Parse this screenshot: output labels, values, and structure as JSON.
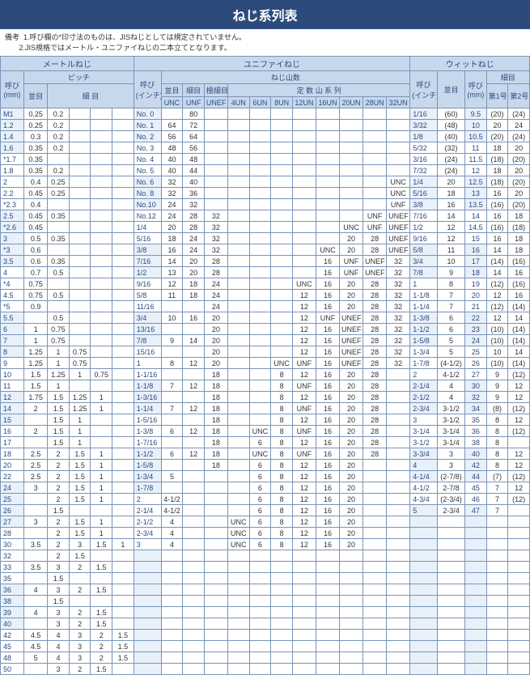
{
  "title": "ねじ系列表",
  "notes": {
    "label": "備考",
    "n1": "1.呼び欄の*印寸法のものは、JISねじとしては規定されていません。",
    "n2": "2.JIS規格ではメートル・ユニファイねじの二本立てとなります。"
  },
  "headers": {
    "metric": "メートルねじ",
    "unified": "ユニファイねじ",
    "whit": "ウィットねじ",
    "yobi_mm": "呼び\n(mm)",
    "yobi_in": "呼び\n(インチ)",
    "pitch": "ピッチ",
    "threads": "ねじ山数",
    "fixed": "定数山系列",
    "coarse": "並目",
    "fine": "細目",
    "vfine": "極細目",
    "unc": "UNC",
    "unf": "UNF",
    "unef": "UNEF",
    "u4": "4UN",
    "u6": "6UN",
    "u8": "8UN",
    "u12": "12UN",
    "u16": "16UN",
    "u20": "20UN",
    "u28": "28UN",
    "u32": "32UN",
    "no1": "第1号",
    "no2": "第2号"
  },
  "metric_rows": [
    {
      "y": "M1",
      "c": "0.25",
      "f": [
        "0.2"
      ]
    },
    {
      "y": "1.2",
      "c": "0.25",
      "f": [
        "0.2"
      ]
    },
    {
      "y": "1.4",
      "c": "0.3",
      "f": [
        "0.2"
      ]
    },
    {
      "y": "1.6",
      "c": "0.35",
      "f": [
        "0.2"
      ]
    },
    {
      "y": "*1.7",
      "c": "0.35",
      "f": [],
      "star": 1
    },
    {
      "y": "1.8",
      "c": "0.35",
      "f": [
        "0.2"
      ]
    },
    {
      "y": "2",
      "c": "0.4",
      "f": [
        "0.25"
      ]
    },
    {
      "y": "2.2",
      "c": "0.45",
      "f": [
        "0.25"
      ]
    },
    {
      "y": "*2.3",
      "c": "0.4",
      "f": [],
      "star": 1
    },
    {
      "y": "2.5",
      "c": "0.45",
      "f": [
        "0.35"
      ]
    },
    {
      "y": "*2.6",
      "c": "0.45",
      "f": [],
      "star": 1
    },
    {
      "y": "3",
      "c": "0.5",
      "f": [
        "0.35"
      ]
    },
    {
      "y": "*3",
      "c": "0.6",
      "f": [],
      "star": 1
    },
    {
      "y": "3.5",
      "c": "0.6",
      "f": [
        "0.35"
      ]
    },
    {
      "y": "4",
      "c": "0.7",
      "f": [
        "0.5"
      ]
    },
    {
      "y": "*4",
      "c": "0.75",
      "f": [],
      "star": 1
    },
    {
      "y": "4.5",
      "c": "0.75",
      "f": [
        "0.5"
      ]
    },
    {
      "y": "*5",
      "c": "0.9",
      "f": [],
      "star": 1
    },
    {
      "y": "5.5",
      "c": "",
      "f": [
        "0.5"
      ]
    },
    {
      "y": "6",
      "c": "1",
      "f": [
        "0.75"
      ]
    },
    {
      "y": "7",
      "c": "1",
      "f": [
        "0.75"
      ]
    },
    {
      "y": "8",
      "c": "1.25",
      "f": [
        "1",
        "0.75"
      ]
    },
    {
      "y": "9",
      "c": "1.25",
      "f": [
        "1",
        "0.75"
      ]
    },
    {
      "y": "10",
      "c": "1.5",
      "f": [
        "1.25",
        "1",
        "0.75"
      ]
    },
    {
      "y": "11",
      "c": "1.5",
      "f": [
        "1"
      ]
    },
    {
      "y": "12",
      "c": "1.75",
      "f": [
        "1.5",
        "1.25",
        "1"
      ]
    },
    {
      "y": "14",
      "c": "2",
      "f": [
        "1.5",
        "1.25",
        "1"
      ]
    },
    {
      "y": "15",
      "c": "",
      "f": [
        "1.5",
        "1"
      ]
    },
    {
      "y": "16",
      "c": "2",
      "f": [
        "1.5",
        "1"
      ]
    },
    {
      "y": "17",
      "c": "",
      "f": [
        "1.5",
        "1"
      ]
    },
    {
      "y": "18",
      "c": "2.5",
      "f": [
        "2",
        "1.5",
        "1"
      ]
    },
    {
      "y": "20",
      "c": "2.5",
      "f": [
        "2",
        "1.5",
        "1"
      ]
    },
    {
      "y": "22",
      "c": "2.5",
      "f": [
        "2",
        "1.5",
        "1"
      ]
    },
    {
      "y": "24",
      "c": "3",
      "f": [
        "2",
        "1.5",
        "1"
      ]
    },
    {
      "y": "25",
      "c": "",
      "f": [
        "2",
        "1.5",
        "1"
      ]
    },
    {
      "y": "26",
      "c": "",
      "f": [
        "1.5"
      ]
    },
    {
      "y": "27",
      "c": "3",
      "f": [
        "2",
        "1.5",
        "1"
      ]
    },
    {
      "y": "28",
      "c": "",
      "f": [
        "2",
        "1.5",
        "1"
      ]
    },
    {
      "y": "30",
      "c": "3.5",
      "f": [
        "2",
        "3",
        "1.5",
        "1"
      ]
    },
    {
      "y": "32",
      "c": "",
      "f": [
        "2",
        "1.5"
      ]
    },
    {
      "y": "33",
      "c": "3.5",
      "f": [
        "3",
        "2",
        "1.5"
      ]
    },
    {
      "y": "35",
      "c": "",
      "f": [
        "1.5"
      ]
    },
    {
      "y": "36",
      "c": "4",
      "f": [
        "3",
        "2",
        "1.5"
      ]
    },
    {
      "y": "38",
      "c": "",
      "f": [
        "1.5"
      ]
    },
    {
      "y": "39",
      "c": "4",
      "f": [
        "3",
        "2",
        "1.5"
      ]
    },
    {
      "y": "40",
      "c": "",
      "f": [
        "3",
        "2",
        "1.5"
      ]
    },
    {
      "y": "42",
      "c": "4.5",
      "f": [
        "4",
        "3",
        "2",
        "1.5"
      ]
    },
    {
      "y": "45",
      "c": "4.5",
      "f": [
        "4",
        "3",
        "2",
        "1.5"
      ]
    },
    {
      "y": "48",
      "c": "5",
      "f": [
        "4",
        "3",
        "2",
        "1.5"
      ]
    },
    {
      "y": "50",
      "c": "",
      "f": [
        "3",
        "2",
        "1.5"
      ]
    }
  ],
  "unified_rows": [
    {
      "y": "No. 0",
      "c": "",
      "f": "80"
    },
    {
      "y": "No. 1",
      "c": "64",
      "f": "72"
    },
    {
      "y": "No. 2",
      "c": "56",
      "f": "64"
    },
    {
      "y": "No. 3",
      "c": "48",
      "f": "56"
    },
    {
      "y": "No. 4",
      "c": "40",
      "f": "48"
    },
    {
      "y": "No. 5",
      "c": "40",
      "f": "44"
    },
    {
      "y": "No. 6",
      "c": "32",
      "f": "40",
      "u32": "UNC"
    },
    {
      "y": "No. 8",
      "c": "32",
      "f": "36",
      "u32": "UNC"
    },
    {
      "y": "No.10",
      "c": "24",
      "f": "32",
      "u32": "UNF"
    },
    {
      "y": "No.12",
      "c": "24",
      "f": "28",
      "e": "32",
      "u28": "UNF",
      "u32": "UNEF"
    },
    {
      "y": "1/4",
      "c": "20",
      "f": "28",
      "e": "32",
      "u20": "UNC",
      "u28": "UNF",
      "u32": "UNEF"
    },
    {
      "y": "5/16",
      "c": "18",
      "f": "24",
      "e": "32",
      "u20": "20",
      "u28": "28",
      "u32": "UNEF"
    },
    {
      "y": "3/8",
      "c": "16",
      "f": "24",
      "e": "32",
      "u16": "UNC",
      "u20": "20",
      "u28": "28",
      "u32": "UNEF"
    },
    {
      "y": "7/16",
      "c": "14",
      "f": "20",
      "e": "28",
      "u16": "16",
      "u20": "UNF",
      "u28": "UNEF",
      "u32": "32"
    },
    {
      "y": "1/2",
      "c": "13",
      "f": "20",
      "e": "28",
      "u16": "16",
      "u20": "UNF",
      "u28": "UNEF",
      "u32": "32"
    },
    {
      "y": "9/16",
      "c": "12",
      "f": "18",
      "e": "24",
      "u12": "UNC",
      "u16": "16",
      "u20": "20",
      "u28": "28",
      "u32": "32"
    },
    {
      "y": "5/8",
      "c": "11",
      "f": "18",
      "e": "24",
      "u12": "12",
      "u16": "16",
      "u20": "20",
      "u28": "28",
      "u32": "32"
    },
    {
      "y": "11/16",
      "c": "",
      "f": "",
      "e": "24",
      "u12": "12",
      "u16": "16",
      "u20": "20",
      "u28": "28",
      "u32": "32"
    },
    {
      "y": "3/4",
      "c": "10",
      "f": "16",
      "e": "20",
      "u12": "12",
      "u16": "UNF",
      "u20": "UNEF",
      "u28": "28",
      "u32": "32"
    },
    {
      "y": "13/16",
      "c": "",
      "f": "",
      "e": "20",
      "u12": "12",
      "u16": "16",
      "u20": "UNEF",
      "u28": "28",
      "u32": "32"
    },
    {
      "y": "7/8",
      "c": "9",
      "f": "14",
      "e": "20",
      "u12": "12",
      "u16": "16",
      "u20": "UNEF",
      "u28": "28",
      "u32": "32"
    },
    {
      "y": "15/16",
      "c": "",
      "f": "",
      "e": "20",
      "u12": "12",
      "u16": "16",
      "u20": "UNEF",
      "u28": "28",
      "u32": "32"
    },
    {
      "y": "1",
      "c": "8",
      "f": "12",
      "e": "20",
      "u8": "UNC",
      "u12": "UNF",
      "u16": "16",
      "u20": "UNEF",
      "u28": "28",
      "u32": "32"
    },
    {
      "y": "1-1/16",
      "c": "",
      "f": "",
      "e": "18",
      "u8": "8",
      "u12": "12",
      "u16": "16",
      "u20": "20",
      "u28": "28"
    },
    {
      "y": "1-1/8",
      "c": "7",
      "f": "12",
      "e": "18",
      "u8": "8",
      "u12": "UNF",
      "u16": "16",
      "u20": "20",
      "u28": "28"
    },
    {
      "y": "1-3/16",
      "c": "",
      "f": "",
      "e": "18",
      "u8": "8",
      "u12": "12",
      "u16": "16",
      "u20": "20",
      "u28": "28"
    },
    {
      "y": "1-1/4",
      "c": "7",
      "f": "12",
      "e": "18",
      "u8": "8",
      "u12": "UNF",
      "u16": "16",
      "u20": "20",
      "u28": "28"
    },
    {
      "y": "1-5/16",
      "c": "",
      "f": "",
      "e": "18",
      "u8": "8",
      "u12": "12",
      "u16": "16",
      "u20": "20",
      "u28": "28"
    },
    {
      "y": "1-3/8",
      "c": "6",
      "f": "12",
      "e": "18",
      "u6": "UNC",
      "u8": "8",
      "u12": "UNF",
      "u16": "16",
      "u20": "20",
      "u28": "28"
    },
    {
      "y": "1-7/16",
      "c": "",
      "f": "",
      "e": "18",
      "u6": "6",
      "u8": "8",
      "u12": "12",
      "u16": "16",
      "u20": "20",
      "u28": "28"
    },
    {
      "y": "1-1/2",
      "c": "6",
      "f": "12",
      "e": "18",
      "u6": "UNC",
      "u8": "8",
      "u12": "UNF",
      "u16": "16",
      "u20": "20",
      "u28": "28"
    },
    {
      "y": "1-5/8",
      "c": "",
      "f": "",
      "e": "18",
      "u6": "6",
      "u8": "8",
      "u12": "12",
      "u16": "16",
      "u20": "20"
    },
    {
      "y": "1-3/4",
      "c": "5",
      "f": "",
      "u6": "6",
      "u8": "8",
      "u12": "12",
      "u16": "16",
      "u20": "20"
    },
    {
      "y": "1-7/8",
      "c": "",
      "f": "",
      "u6": "6",
      "u8": "8",
      "u12": "12",
      "u16": "16",
      "u20": "20"
    },
    {
      "y": "2",
      "c": "4-1/2",
      "f": "",
      "u6": "6",
      "u8": "8",
      "u12": "12",
      "u16": "16",
      "u20": "20"
    },
    {
      "y": "2-1/4",
      "c": "4-1/2",
      "f": "",
      "u6": "6",
      "u8": "8",
      "u12": "12",
      "u16": "16",
      "u20": "20"
    },
    {
      "y": "2-1/2",
      "c": "4",
      "f": "",
      "u4": "UNC",
      "u6": "6",
      "u8": "8",
      "u12": "12",
      "u16": "16",
      "u20": "20"
    },
    {
      "y": "2-3/4",
      "c": "4",
      "f": "",
      "u4": "UNC",
      "u6": "6",
      "u8": "8",
      "u12": "12",
      "u16": "16",
      "u20": "20"
    },
    {
      "y": "3",
      "c": "4",
      "f": "",
      "u4": "UNC",
      "u6": "6",
      "u8": "8",
      "u12": "12",
      "u16": "16",
      "u20": "20"
    }
  ],
  "whit_rows": [
    {
      "yi": "1/16",
      "c": "(60)",
      "ym": "9.5",
      "n1": "(20)",
      "n2": "(24)"
    },
    {
      "yi": "3/32",
      "c": "(48)",
      "ym": "10",
      "n1": "20",
      "n2": "24"
    },
    {
      "yi": "1/8",
      "c": "(40)",
      "ym": "10.5",
      "n1": "(20)",
      "n2": "(24)"
    },
    {
      "yi": "5/32",
      "c": "(32)",
      "ym": "11",
      "n1": "18",
      "n2": "20"
    },
    {
      "yi": "3/16",
      "c": "(24)",
      "ym": "11.5",
      "n1": "(18)",
      "n2": "(20)"
    },
    {
      "yi": "7/32",
      "c": "(24)",
      "ym": "12",
      "n1": "18",
      "n2": "20"
    },
    {
      "yi": "1/4",
      "c": "20",
      "ym": "12.5",
      "n1": "(18)",
      "n2": "(20)"
    },
    {
      "yi": "5/16",
      "c": "18",
      "ym": "13",
      "n1": "16",
      "n2": "20"
    },
    {
      "yi": "3/8",
      "c": "16",
      "ym": "13.5",
      "n1": "(16)",
      "n2": "(20)"
    },
    {
      "yi": "7/16",
      "c": "14",
      "ym": "14",
      "n1": "16",
      "n2": "18"
    },
    {
      "yi": "1/2",
      "c": "12",
      "ym": "14.5",
      "n1": "(16)",
      "n2": "(18)"
    },
    {
      "yi": "9/16",
      "c": "12",
      "ym": "15",
      "n1": "16",
      "n2": "18"
    },
    {
      "yi": "5/8",
      "c": "11",
      "ym": "16",
      "n1": "14",
      "n2": "18"
    },
    {
      "yi": "3/4",
      "c": "10",
      "ym": "17",
      "n1": "(14)",
      "n2": "(16)"
    },
    {
      "yi": "7/8",
      "c": "9",
      "ym": "18",
      "n1": "14",
      "n2": "16"
    },
    {
      "yi": "1",
      "c": "8",
      "ym": "19",
      "n1": "(12)",
      "n2": "(16)"
    },
    {
      "yi": "1-1/8",
      "c": "7",
      "ym": "20",
      "n1": "12",
      "n2": "16"
    },
    {
      "yi": "1-1/4",
      "c": "7",
      "ym": "21",
      "n1": "(12)",
      "n2": "(14)"
    },
    {
      "yi": "1-3/8",
      "c": "6",
      "ym": "22",
      "n1": "12",
      "n2": "14"
    },
    {
      "yi": "1-1/2",
      "c": "6",
      "ym": "23",
      "n1": "(10)",
      "n2": "(14)"
    },
    {
      "yi": "1-5/8",
      "c": "5",
      "ym": "24",
      "n1": "(10)",
      "n2": "(14)"
    },
    {
      "yi": "1-3/4",
      "c": "5",
      "ym": "25",
      "n1": "10",
      "n2": "14"
    },
    {
      "yi": "1-7/8",
      "c": "(4-1/2)",
      "ym": "26",
      "n1": "(10)",
      "n2": "(14)"
    },
    {
      "yi": "2",
      "c": "4-1/2",
      "ym": "27",
      "n1": "9",
      "n2": "(12)"
    },
    {
      "yi": "2-1/4",
      "c": "4",
      "ym": "30",
      "n1": "9",
      "n2": "12"
    },
    {
      "yi": "2-1/2",
      "c": "4",
      "ym": "32",
      "n1": "9",
      "n2": "12"
    },
    {
      "yi": "2-3/4",
      "c": "3-1/2",
      "ym": "34",
      "n1": "(8)",
      "n2": "(12)"
    },
    {
      "yi": "3",
      "c": "3-1/2",
      "ym": "35",
      "n1": "8",
      "n2": "12"
    },
    {
      "yi": "3-1/4",
      "c": "3-1/4",
      "ym": "36",
      "n1": "8",
      "n2": "(12)"
    },
    {
      "yi": "3-1/2",
      "c": "3-1/4",
      "ym": "38",
      "n1": "8",
      "n2": ""
    },
    {
      "yi": "3-3/4",
      "c": "3",
      "ym": "40",
      "n1": "8",
      "n2": "12"
    },
    {
      "yi": "4",
      "c": "3",
      "ym": "42",
      "n1": "8",
      "n2": "12"
    },
    {
      "yi": "4-1/4",
      "c": "(2-7/8)",
      "ym": "44",
      "n1": "(7)",
      "n2": "(12)"
    },
    {
      "yi": "4-1/2",
      "c": "2-7/8",
      "ym": "45",
      "n1": "7",
      "n2": "12"
    },
    {
      "yi": "4-3/4",
      "c": "(2-3/4)",
      "ym": "46",
      "n1": "7",
      "n2": "(12)"
    },
    {
      "yi": "5",
      "c": "2-3/4",
      "ym": "47",
      "n1": "7",
      "n2": ""
    }
  ],
  "style": {
    "title_bg": "#2c4a7c",
    "title_fg": "#ffffff",
    "header_bg": "#c8d8ec",
    "header_fg": "#2c4a7c",
    "alt_bg": "#e8f0fa",
    "border": "#7a94b8",
    "text": "#333333"
  }
}
